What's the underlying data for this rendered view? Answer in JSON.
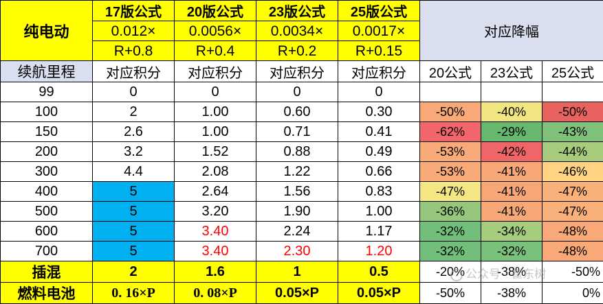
{
  "header": {
    "corner": "纯电动",
    "formulas": [
      {
        "name": "17版公式",
        "line1": "0.012×",
        "line2": "R+0.8"
      },
      {
        "name": "20版公式",
        "line1": "0.0056×",
        "line2": "R+0.4"
      },
      {
        "name": "23版公式",
        "line1": "0.0034×",
        "line2": "R+0.2"
      },
      {
        "name": "25版公式",
        "line1": "0.0017×",
        "line2": "R+0.15"
      }
    ],
    "reduction_title": "对应降幅"
  },
  "subheader": {
    "range_label": "续航里程",
    "credit_labels": [
      "对应积分",
      "对应积分",
      "对应积分",
      "对应积分"
    ],
    "reduction_cols": [
      "20公式",
      "23公式",
      "25公式"
    ]
  },
  "rows": [
    {
      "range": "99",
      "v17": "0",
      "v20": "0",
      "v23": "0",
      "v25": "0",
      "r20": "",
      "r23": "",
      "r25": ""
    },
    {
      "range": "100",
      "v17": "2",
      "v20": "1.00",
      "v23": "0.60",
      "v25": "0.30",
      "r20": "-50%",
      "r23": "-40%",
      "r25": "-50%"
    },
    {
      "range": "150",
      "v17": "2.6",
      "v20": "1.00",
      "v23": "0.71",
      "v25": "0.41",
      "r20": "-62%",
      "r23": "-29%",
      "r25": "-43%"
    },
    {
      "range": "200",
      "v17": "3.2",
      "v20": "1.52",
      "v23": "0.88",
      "v25": "0.49",
      "r20": "-53%",
      "r23": "-42%",
      "r25": "-44%"
    },
    {
      "range": "300",
      "v17": "4.4",
      "v20": "2.08",
      "v23": "1.22",
      "v25": "0.66",
      "r20": "-53%",
      "r23": "-41%",
      "r25": "-46%"
    },
    {
      "range": "400",
      "v17": "5",
      "v20": "2.64",
      "v23": "1.56",
      "v25": "0.83",
      "r20": "-47%",
      "r23": "-41%",
      "r25": "-47%"
    },
    {
      "range": "500",
      "v17": "5",
      "v20": "3.20",
      "v23": "1.90",
      "v25": "1.00",
      "r20": "-36%",
      "r23": "-41%",
      "r25": "-47%"
    },
    {
      "range": "600",
      "v17": "5",
      "v20": "3.40",
      "v23": "2.24",
      "v25": "1.17",
      "r20": "-32%",
      "r23": "-34%",
      "r25": "-48%"
    },
    {
      "range": "700",
      "v17": "5",
      "v20": "3.40",
      "v23": "2.30",
      "v25": "1.20",
      "r20": "-32%",
      "r23": "-32%",
      "r25": "-48%"
    }
  ],
  "hybrid": {
    "label": "插混",
    "v17": "2",
    "v20": "1.6",
    "v23": "1",
    "v25": "0.5",
    "r20": "-20%",
    "r23": "-38%",
    "r25": "-50%"
  },
  "fuelcell": {
    "label": "燃料电池",
    "v17": "0. 16×P",
    "v20": "0. 08×P",
    "v23": "0.05×P",
    "v25": "0.05×P",
    "r20": "-50%",
    "r23": "-38%",
    "r25": "0%"
  },
  "colors": {
    "header_yellow": "#ffff00",
    "reduction_header": "#dadff0",
    "capped_blue": "#00b0f0",
    "red_text": "#ff0000",
    "heat_red": "#f8696b",
    "heat_yellow": "#ffeb84",
    "heat_green": "#63be7b"
  },
  "watermark": "公众号 · 崔东树"
}
